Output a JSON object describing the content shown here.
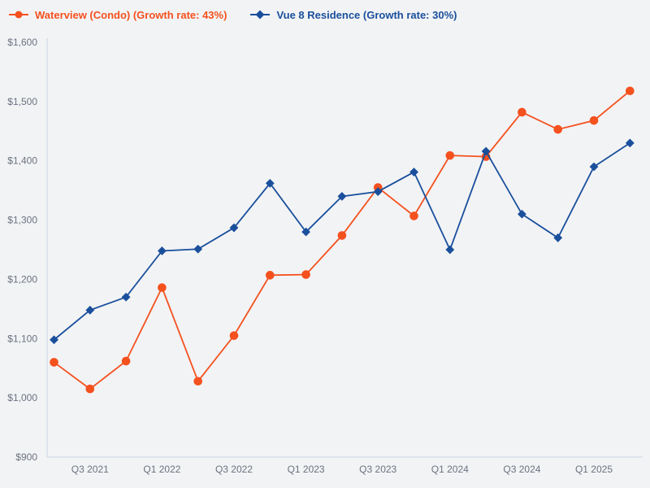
{
  "legend": {
    "items": [
      {
        "label": "Waterview (Condo) (Growth rate: 43%)",
        "color": "#f4511e",
        "marker": "circle"
      },
      {
        "label": "Vue 8 Residence (Growth rate: 30%)",
        "color": "#1a4f9c",
        "marker": "diamond"
      }
    ]
  },
  "chart_data": {
    "type": "line",
    "title": "",
    "x": [
      "Q2 2021",
      "Q3 2021",
      "Q4 2021",
      "Q1 2022",
      "Q2 2022",
      "Q3 2022",
      "Q4 2022",
      "Q1 2023",
      "Q2 2023",
      "Q3 2023",
      "Q4 2023",
      "Q1 2024",
      "Q2 2024",
      "Q3 2024",
      "Q4 2024",
      "Q1 2025",
      "Q2 2025"
    ],
    "x_tick_indices": [
      1,
      3,
      5,
      7,
      9,
      11,
      13,
      15
    ],
    "x_tick_labels": [
      "Q3 2021",
      "Q1 2022",
      "Q3 2022",
      "Q1 2023",
      "Q3 2023",
      "Q1 2024",
      "Q3 2024",
      "Q1 2025"
    ],
    "series": [
      {
        "name": "Waterview (Condo)",
        "growth_rate": "43%",
        "marker": "circle",
        "color": "#f4511e",
        "values": [
          1060,
          1015,
          1062,
          1186,
          1028,
          1105,
          1207,
          1208,
          1274,
          1355,
          1307,
          1409,
          1407,
          1482,
          1453,
          1468,
          1518
        ]
      },
      {
        "name": "Vue 8 Residence",
        "growth_rate": "30%",
        "marker": "diamond",
        "color": "#1a4f9c",
        "values": [
          1098,
          1148,
          1170,
          1248,
          1251,
          1287,
          1362,
          1280,
          1340,
          1348,
          1381,
          1250,
          1416,
          1310,
          1270,
          1390,
          1430
        ]
      }
    ],
    "ylim": [
      900,
      1600
    ],
    "y_tick_step": 100,
    "y_tick_prefix": "$",
    "grid": false,
    "legend_position": "top-left"
  },
  "style": {
    "background": "#f2f3f5",
    "axis_line": "#c9d5e6",
    "tick_text": "#6b7280"
  }
}
